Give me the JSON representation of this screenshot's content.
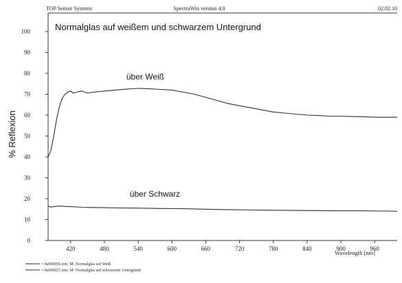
{
  "header": {
    "left": "TOP Sensor Systems",
    "center": "SpectraWin version 4.0",
    "right": "02.02.10"
  },
  "chart_data": {
    "type": "line",
    "title": "Normalglas auf weißem und schwarzem Untergrund",
    "xlabel": "Wavelength [nm]",
    "ylabel": "% Reflexion",
    "xlim": [
      380,
      1000
    ],
    "ylim": [
      0,
      100
    ],
    "xticks": [
      420,
      480,
      540,
      600,
      660,
      720,
      780,
      840,
      900,
      960
    ],
    "yticks": [
      0,
      10,
      20,
      30,
      40,
      50,
      60,
      70,
      80,
      90,
      100
    ],
    "grid": false,
    "annotations": [
      {
        "text": "über Weiß",
        "x": 519,
        "y": 77
      },
      {
        "text": "über Schwarz",
        "x": 525,
        "y": 21
      }
    ],
    "series": [
      {
        "legend_text": "= hs000056.trm:  M- Normalglas auf Weiß",
        "x": [
          380,
          385,
          390,
          395,
          400,
          405,
          410,
          415,
          420,
          425,
          430,
          440,
          450,
          460,
          480,
          500,
          520,
          540,
          560,
          580,
          600,
          620,
          640,
          660,
          680,
          700,
          720,
          740,
          760,
          780,
          800,
          820,
          840,
          860,
          880,
          900,
          920,
          940,
          960,
          980,
          1000
        ],
        "values": [
          40,
          43,
          50,
          58,
          64,
          68,
          70,
          71,
          71.5,
          70.5,
          71,
          71.5,
          70.5,
          71,
          71.5,
          72,
          72.5,
          72.8,
          72.6,
          72.3,
          72,
          71,
          70,
          68.5,
          67,
          65.5,
          64.5,
          63.5,
          62.5,
          61.5,
          61,
          60.5,
          60,
          59.8,
          59.5,
          59.5,
          59.3,
          59.2,
          59,
          59,
          59
        ]
      },
      {
        "legend_text": "= hs000057.trm:  M- Normalglas auf schwarzem Untergrund",
        "x": [
          380,
          385,
          390,
          400,
          410,
          420,
          440,
          460,
          480,
          500,
          540,
          580,
          620,
          660,
          700,
          740,
          780,
          820,
          860,
          900,
          940,
          980,
          1000
        ],
        "values": [
          16.5,
          16,
          16.2,
          16.5,
          16.3,
          16.2,
          15.9,
          15.8,
          15.7,
          15.6,
          15.5,
          15.3,
          15.2,
          15,
          14.8,
          14.6,
          14.5,
          14.4,
          14.3,
          14.2,
          14.2,
          14.1,
          14
        ]
      }
    ]
  }
}
